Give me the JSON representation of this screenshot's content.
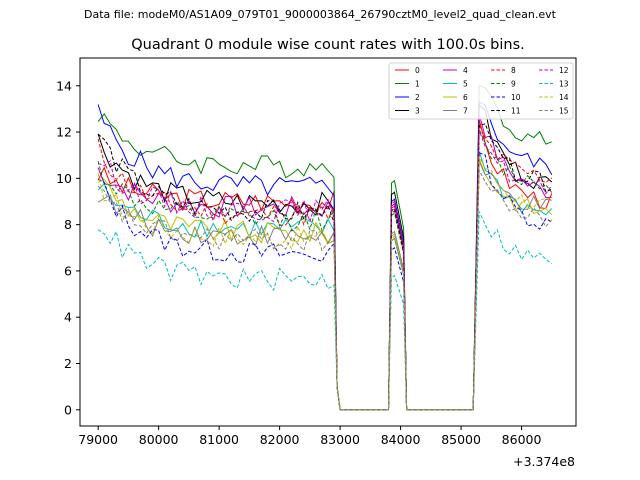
{
  "header": {
    "data_file": "Data file: modeM0/AS1A09_079T01_9000003864_26790cztM0_level2_quad_clean.evt"
  },
  "chart_data": {
    "type": "line",
    "title": "Quadrant 0 module wise count rates with 100.0s bins.",
    "xlabel": "",
    "ylabel": "",
    "x_offset_label": "+3.374e8",
    "xlim": [
      78700,
      86900
    ],
    "ylim": [
      -0.7,
      15.2
    ],
    "xticks": [
      79000,
      80000,
      81000,
      82000,
      83000,
      84000,
      85000,
      86000
    ],
    "yticks": [
      0,
      2,
      4,
      6,
      8,
      10,
      12,
      14
    ],
    "legend_position": "top-right",
    "legend_columns": 4,
    "segments": [
      [
        79000,
        82900
      ],
      [
        83850,
        84050
      ],
      [
        85300,
        86550
      ]
    ],
    "gap_range": [
      83000,
      85200
    ],
    "series": [
      {
        "name": "0",
        "color": "#ff0000",
        "style": "solid",
        "level": 9.0,
        "start": 10.2,
        "peak1": 8.8,
        "peak2": 12.2,
        "end": 8.8
      },
      {
        "name": "1",
        "color": "#008000",
        "style": "solid",
        "level": 10.5,
        "start": 12.9,
        "peak1": 9.8,
        "peak2": 14.4,
        "end": 11.4
      },
      {
        "name": "2",
        "color": "#0000ff",
        "style": "solid",
        "level": 9.6,
        "start": 12.8,
        "peak1": 9.0,
        "peak2": 13.6,
        "end": 10.3
      },
      {
        "name": "3",
        "color": "#000000",
        "style": "solid",
        "level": 8.9,
        "start": 11.7,
        "peak1": 9.3,
        "peak2": 13.4,
        "end": 9.5
      },
      {
        "name": "4",
        "color": "#bf00bf",
        "style": "solid",
        "level": 8.7,
        "start": 10.4,
        "peak1": 8.7,
        "peak2": 12.9,
        "end": 9.2
      },
      {
        "name": "5",
        "color": "#00bfbf",
        "style": "solid",
        "level": 7.8,
        "start": 9.6,
        "peak1": 7.3,
        "peak2": 11.2,
        "end": 8.3
      },
      {
        "name": "6",
        "color": "#bfbf00",
        "style": "solid",
        "level": 7.6,
        "start": 10.1,
        "peak1": 7.5,
        "peak2": 10.8,
        "end": 8.4
      },
      {
        "name": "7",
        "color": "#808080",
        "style": "solid",
        "level": 7.5,
        "start": 9.4,
        "peak1": 7.6,
        "peak2": 10.6,
        "end": 8.6
      },
      {
        "name": "8",
        "color": "#ff0000",
        "style": "dashed",
        "level": 8.4,
        "start": 11.3,
        "peak1": 8.5,
        "peak2": 12.1,
        "end": 9.9
      },
      {
        "name": "9",
        "color": "#008000",
        "style": "dashed",
        "level": 8.2,
        "start": 10.5,
        "peak1": 8.4,
        "peak2": 11.8,
        "end": 9.6
      },
      {
        "name": "10",
        "color": "#0000ff",
        "style": "dashed",
        "level": 6.7,
        "start": 9.9,
        "peak1": 6.9,
        "peak2": 11.5,
        "end": 7.8
      },
      {
        "name": "11",
        "color": "#000000",
        "style": "dashed",
        "level": 8.5,
        "start": 12.0,
        "peak1": 8.6,
        "peak2": 12.6,
        "end": 9.6
      },
      {
        "name": "12",
        "color": "#bf00bf",
        "style": "dashed",
        "level": 8.6,
        "start": 10.9,
        "peak1": 8.9,
        "peak2": 12.3,
        "end": 9.3
      },
      {
        "name": "13",
        "color": "#00bfbf",
        "style": "dashed",
        "level": 5.6,
        "start": 8.2,
        "peak1": 5.7,
        "peak2": 8.7,
        "end": 6.3
      },
      {
        "name": "14",
        "color": "#bfbf00",
        "style": "dashed",
        "level": 7.4,
        "start": 9.8,
        "peak1": 7.4,
        "peak2": 11.0,
        "end": 8.7
      },
      {
        "name": "15",
        "color": "#808080",
        "style": "dashed",
        "level": 7.3,
        "start": 9.4,
        "peak1": 7.3,
        "peak2": 10.3,
        "end": 8.1
      }
    ]
  }
}
